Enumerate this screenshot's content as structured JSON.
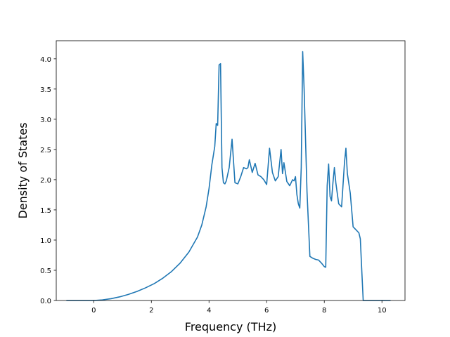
{
  "chart_data": {
    "type": "line",
    "title": "",
    "xlabel": "Frequency (THz)",
    "ylabel": "Density of States",
    "xlim": [
      -1.3,
      10.8
    ],
    "ylim": [
      0.0,
      4.3
    ],
    "xticks": [
      0,
      2,
      4,
      6,
      8,
      10
    ],
    "xtick_labels": [
      "0",
      "2",
      "4",
      "6",
      "8",
      "10"
    ],
    "yticks": [
      0.0,
      0.5,
      1.0,
      1.5,
      2.0,
      2.5,
      3.0,
      3.5,
      4.0
    ],
    "ytick_labels": [
      "0.0",
      "0.5",
      "1.0",
      "1.5",
      "2.0",
      "2.5",
      "3.0",
      "3.5",
      "4.0"
    ],
    "grid": false,
    "legend": "none",
    "line_color": "#1f77b4",
    "series": [
      {
        "x": [
          -0.95,
          0.0,
          0.3,
          0.6,
          0.9,
          1.2,
          1.5,
          1.8,
          2.1,
          2.4,
          2.7,
          3.0,
          3.3,
          3.6,
          3.75,
          3.9,
          4.0,
          4.1,
          4.2,
          4.25,
          4.3,
          4.35,
          4.4,
          4.45,
          4.5,
          4.55,
          4.6,
          4.7,
          4.8,
          4.9,
          5.0,
          5.1,
          5.2,
          5.3,
          5.35,
          5.4,
          5.5,
          5.6,
          5.7,
          5.8,
          5.9,
          6.0,
          6.1,
          6.2,
          6.3,
          6.4,
          6.5,
          6.55,
          6.6,
          6.7,
          6.8,
          6.9,
          6.95,
          7.0,
          7.05,
          7.1,
          7.15,
          7.2,
          7.25,
          7.3,
          7.4,
          7.5,
          7.6,
          7.7,
          7.8,
          7.9,
          8.0,
          8.05,
          8.1,
          8.15,
          8.2,
          8.25,
          8.3,
          8.35,
          8.4,
          8.5,
          8.6,
          8.7,
          8.75,
          8.8,
          8.9,
          9.0,
          9.1,
          9.2,
          9.25,
          9.3,
          9.35,
          10.3
        ],
        "y": [
          0.0,
          0.0,
          0.01,
          0.03,
          0.06,
          0.1,
          0.15,
          0.21,
          0.28,
          0.37,
          0.48,
          0.62,
          0.8,
          1.05,
          1.25,
          1.55,
          1.85,
          2.25,
          2.55,
          2.93,
          2.9,
          3.9,
          3.92,
          2.2,
          1.95,
          1.93,
          1.98,
          2.2,
          2.67,
          1.95,
          1.93,
          2.05,
          2.2,
          2.18,
          2.2,
          2.33,
          2.12,
          2.27,
          2.08,
          2.05,
          2.0,
          1.92,
          2.52,
          2.12,
          1.98,
          2.05,
          2.5,
          2.1,
          2.28,
          1.97,
          1.9,
          2.0,
          1.98,
          2.05,
          1.75,
          1.6,
          1.53,
          2.2,
          4.12,
          3.5,
          1.8,
          0.73,
          0.7,
          0.68,
          0.67,
          0.62,
          0.56,
          0.55,
          1.9,
          2.26,
          1.72,
          1.65,
          1.95,
          2.2,
          1.95,
          1.6,
          1.55,
          2.28,
          2.52,
          2.1,
          1.78,
          1.22,
          1.17,
          1.12,
          1.02,
          0.5,
          0.0,
          0.0
        ]
      }
    ]
  }
}
